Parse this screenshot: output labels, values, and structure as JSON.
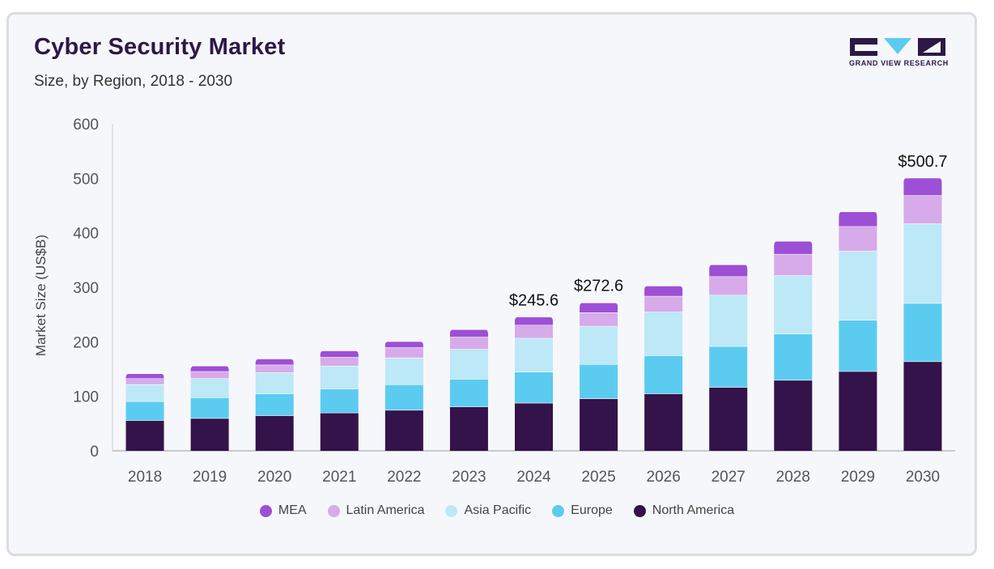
{
  "header": {
    "title": "Cyber Security Market",
    "subtitle": "Size, by Region, 2018 - 2030"
  },
  "logo": {
    "text": "GRAND VIEW RESEARCH"
  },
  "colors": {
    "MEA": "#9d4fd6",
    "Latin America": "#d7aae9",
    "Asia Pacific": "#bde8f7",
    "Europe": "#5ccbf0",
    "North America": "#34124a",
    "brand": "#2d1846"
  },
  "chart_data": {
    "type": "bar",
    "stacked": true,
    "title": "",
    "xlabel": "",
    "ylabel": "Market Size (US$B)",
    "ylim": [
      0,
      600
    ],
    "yticks": [
      0,
      100,
      200,
      300,
      400,
      500,
      600
    ],
    "grid": false,
    "legend_position": "bottom",
    "categories": [
      "2018",
      "2019",
      "2020",
      "2021",
      "2022",
      "2023",
      "2024",
      "2025",
      "2026",
      "2027",
      "2028",
      "2029",
      "2030"
    ],
    "series": [
      {
        "name": "North America",
        "values": [
          56,
          60,
          65,
          70,
          75,
          81,
          88,
          96,
          105,
          117,
          130,
          146,
          164
        ]
      },
      {
        "name": "Europe",
        "values": [
          35,
          38,
          40,
          44,
          47,
          51,
          57,
          63,
          70,
          75,
          85,
          94,
          107
        ]
      },
      {
        "name": "Asia Pacific",
        "values": [
          31,
          35,
          39,
          42,
          49,
          55,
          62,
          70,
          80,
          94,
          107,
          127,
          146
        ]
      },
      {
        "name": "Latin America",
        "values": [
          11,
          13,
          14,
          16,
          19,
          22,
          24,
          25,
          29,
          34,
          39,
          45,
          52
        ]
      },
      {
        "name": "MEA",
        "values": [
          9,
          10,
          11,
          12,
          11,
          14,
          15,
          18,
          19,
          22,
          24,
          27,
          32
        ]
      }
    ],
    "annotations": [
      {
        "category": "2024",
        "text": "$245.6",
        "value": 245.6
      },
      {
        "category": "2025",
        "text": "$272.6",
        "value": 272.6
      },
      {
        "category": "2030",
        "text": "$500.7",
        "value": 500.7
      }
    ],
    "legend_order": [
      "MEA",
      "Latin America",
      "Asia Pacific",
      "Europe",
      "North America"
    ]
  }
}
